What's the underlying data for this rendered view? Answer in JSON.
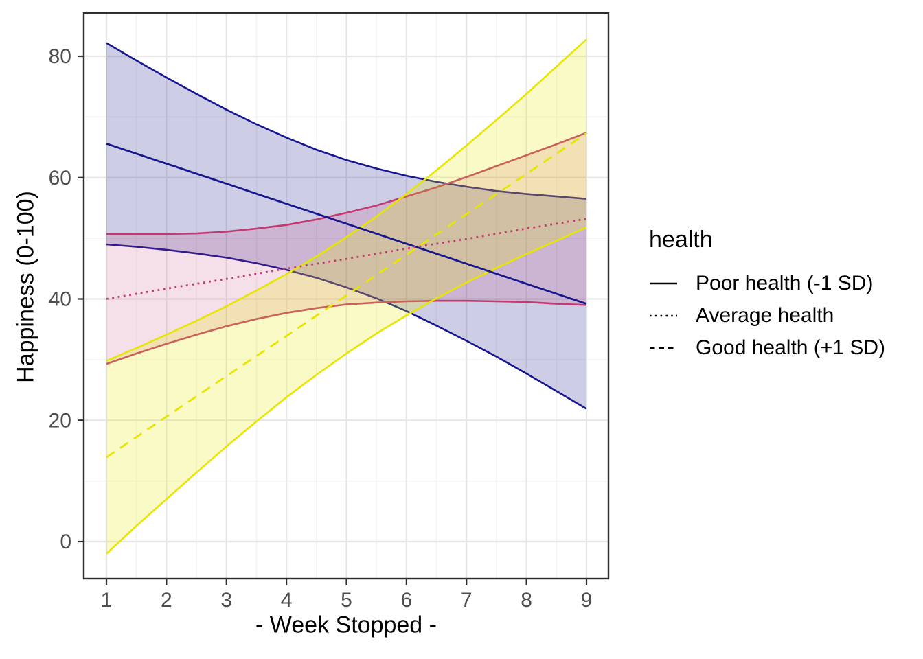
{
  "legend": {
    "title": "health",
    "items": [
      {
        "label": "Poor health (-1 SD)",
        "linetype": "solid"
      },
      {
        "label": "Average health",
        "linetype": "dotted"
      },
      {
        "label": "Good health (+1 SD)",
        "linetype": "dashed"
      }
    ],
    "key_color": "#000000"
  },
  "chart_data": {
    "type": "line",
    "title": "",
    "xlabel": "- Week Stopped -",
    "ylabel": "Happiness (0-100)",
    "legend_position": "right",
    "grid": true,
    "xlim": [
      0.62,
      9.37
    ],
    "ylim": [
      -6.1,
      87.1
    ],
    "x_breaks": [
      1,
      2,
      3,
      4,
      5,
      6,
      7,
      8,
      9
    ],
    "x_tick_labels": [
      "1",
      "2",
      "3",
      "4",
      "5",
      "6",
      "7",
      "8",
      "9"
    ],
    "y_breaks": [
      0,
      20,
      40,
      60,
      80
    ],
    "y_tick_labels": [
      "0",
      "20",
      "40",
      "60",
      "80"
    ],
    "x_minor_breaks": [
      1.5,
      2.5,
      3.5,
      4.5,
      5.5,
      6.5,
      7.5,
      8.5
    ],
    "y_minor_breaks": [
      10,
      30,
      50,
      70
    ],
    "x": [
      1,
      2,
      3,
      4,
      5,
      6,
      7,
      8,
      9
    ],
    "x_dense": [
      1,
      1.5,
      2,
      2.5,
      3,
      3.5,
      4,
      4.5,
      5,
      5.5,
      6,
      6.5,
      7,
      7.5,
      8,
      8.5,
      9
    ],
    "series": [
      {
        "name": "Poor health (-1 SD)",
        "linetype": "solid",
        "color": "#16168f",
        "fill": "#1a1a8c",
        "fill_opacity": 0.22,
        "values": [
          65.6,
          62.3,
          59.0,
          55.7,
          52.4,
          49.1,
          45.8,
          42.5,
          39.2
        ],
        "ci_upper": [
          82.2,
          79.3,
          76.5,
          73.8,
          71.2,
          68.8,
          66.6,
          64.6,
          62.9,
          61.5,
          60.3,
          59.3,
          58.5,
          57.8,
          57.3,
          56.9,
          56.5
        ],
        "ci_lower": [
          49.0,
          48.6,
          48.1,
          47.5,
          46.8,
          45.9,
          44.8,
          43.5,
          41.9,
          40.1,
          38.0,
          35.6,
          33.1,
          30.5,
          27.7,
          24.8,
          21.9
        ]
      },
      {
        "name": "Average health",
        "linetype": "dotted",
        "color": "#c23a70",
        "fill": "#c23a70",
        "fill_opacity": 0.16,
        "values": [
          40.0,
          41.7,
          43.3,
          45.0,
          46.6,
          48.3,
          49.9,
          51.6,
          53.2
        ],
        "ci_upper": [
          50.7,
          50.7,
          50.7,
          50.8,
          51.1,
          51.6,
          52.2,
          53.1,
          54.2,
          55.4,
          56.9,
          58.4,
          60.1,
          61.9,
          63.7,
          65.5,
          67.4
        ],
        "ci_lower": [
          29.3,
          31.0,
          32.6,
          34.1,
          35.5,
          36.7,
          37.7,
          38.5,
          39.1,
          39.4,
          39.6,
          39.7,
          39.7,
          39.6,
          39.5,
          39.2,
          39.0
        ]
      },
      {
        "name": "Good health (+1 SD)",
        "linetype": "dashed",
        "color": "#e6e600",
        "fill": "#e6e600",
        "fill_opacity": 0.22,
        "values": [
          13.9,
          20.6,
          27.3,
          33.9,
          40.6,
          47.3,
          54.0,
          60.6,
          67.3
        ],
        "ci_upper": [
          29.8,
          31.9,
          34.1,
          36.4,
          38.8,
          41.4,
          44.1,
          47.0,
          50.2,
          53.6,
          57.3,
          61.2,
          65.3,
          69.5,
          73.8,
          78.3,
          82.8
        ],
        "ci_lower": [
          -2.0,
          2.6,
          7.0,
          11.4,
          15.7,
          19.8,
          23.8,
          27.5,
          31.0,
          34.3,
          37.3,
          40.1,
          42.7,
          45.1,
          47.4,
          49.6,
          51.8
        ]
      }
    ],
    "colors": {
      "panel_border": "#2f2f2f",
      "grid_major": "#e6e6e6",
      "grid_minor": "#f3f3f3",
      "tick_label": "#4d4d4d",
      "background": "#ffffff"
    }
  }
}
